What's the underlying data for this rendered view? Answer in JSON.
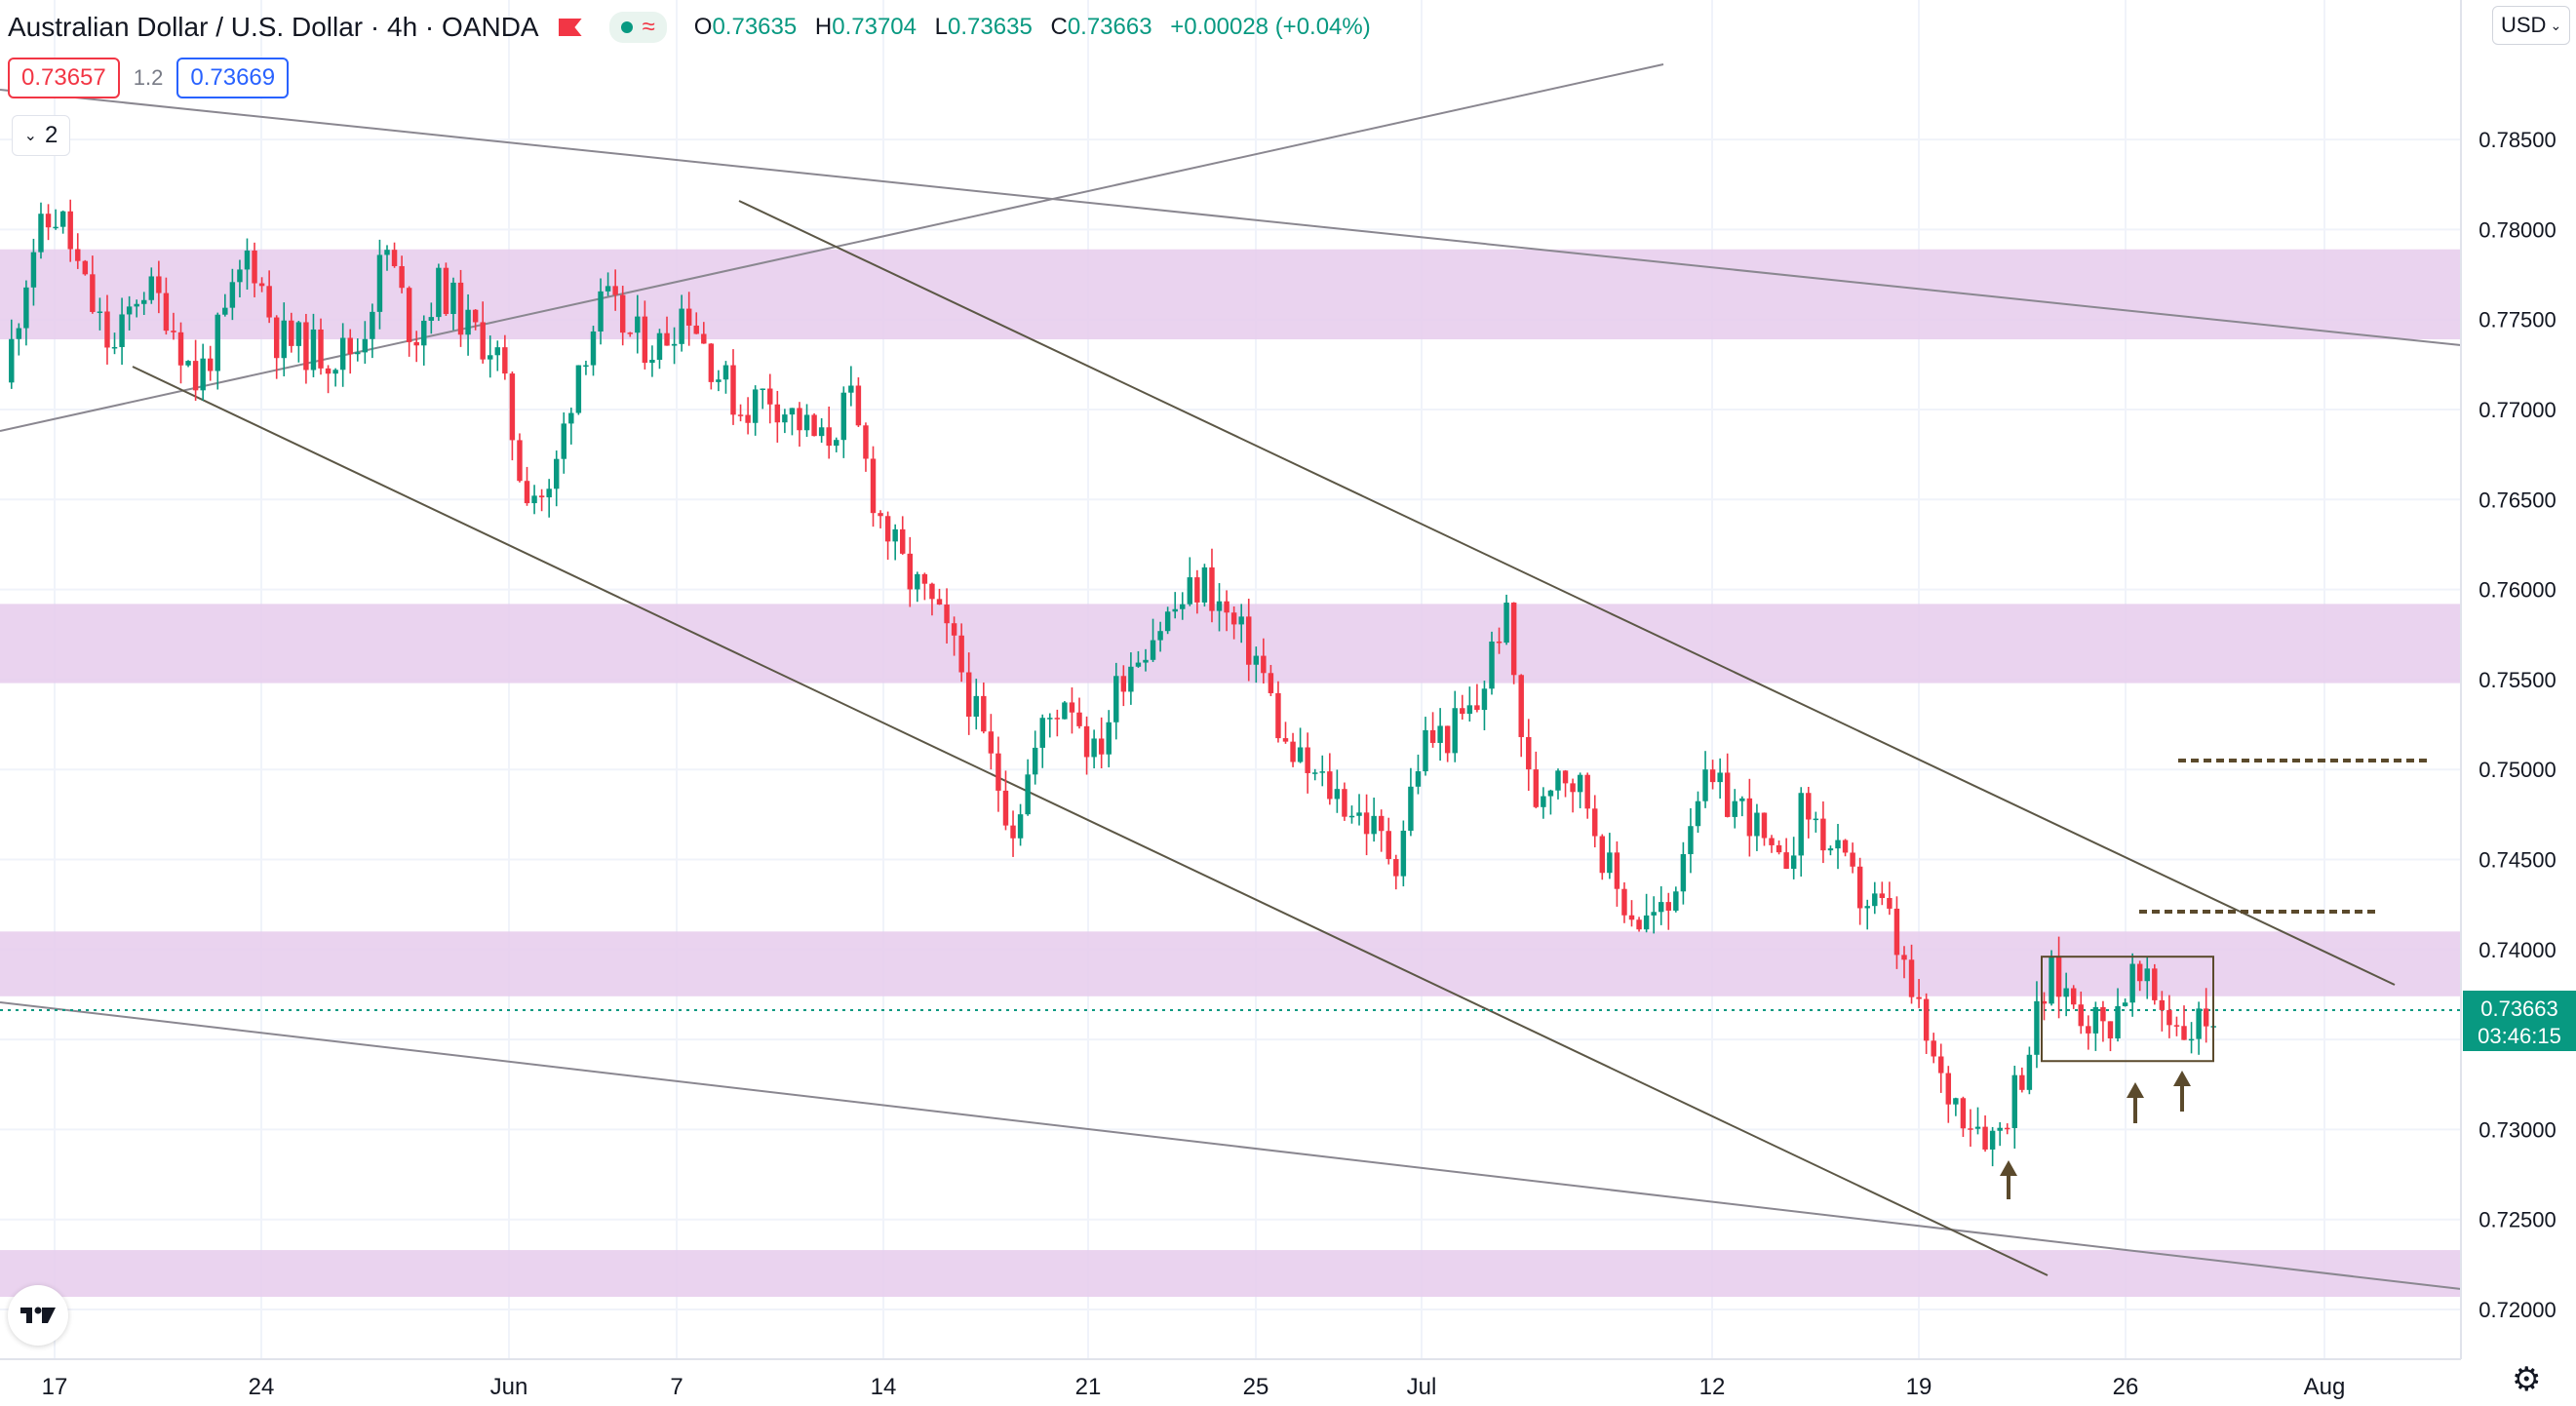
{
  "header": {
    "title": "Australian Dollar / U.S. Dollar · 4h · OANDA",
    "open_label": "O",
    "open": "0.73635",
    "high_label": "H",
    "high": "0.73704",
    "low_label": "L",
    "low": "0.73635",
    "close_label": "C",
    "close": "0.73663",
    "change": "+0.00028 (+0.04%)"
  },
  "trade": {
    "bid": "0.73657",
    "spread": "1.2",
    "ask": "0.73669"
  },
  "indicators_count": "2",
  "currency": "USD",
  "icons": [
    "flag-icon",
    "eye-icon",
    "wave-icon",
    "chevron-down-icon",
    "tradingview-logo-icon",
    "gear-icon"
  ],
  "colors": {
    "up": "#089981",
    "down": "#f23645",
    "zone": "#e6cbec",
    "trendline": "#5c5746",
    "channel": "#8a8790",
    "arrow": "#5b4a2c"
  },
  "price_label": {
    "value": "0.73663",
    "countdown": "03:46:15"
  },
  "chart_data": {
    "type": "candlestick",
    "y_axis": {
      "min": 0.718,
      "max": 0.7875,
      "ticks": [
        "0.78500",
        "0.78000",
        "0.77500",
        "0.77000",
        "0.76500",
        "0.76000",
        "0.75500",
        "0.75000",
        "0.74500",
        "0.74000",
        "0.73500",
        "0.73000",
        "0.72500",
        "0.72000"
      ]
    },
    "x_axis": {
      "ticks": [
        "17",
        "24",
        "Jun",
        "7",
        "14",
        "21",
        "25",
        "Jul",
        "12",
        "19",
        "26",
        "Aug"
      ]
    },
    "grid": true,
    "current_price": 0.73663,
    "zones": [
      {
        "top": 0.7789,
        "bottom": 0.7739
      },
      {
        "top": 0.7592,
        "bottom": 0.7548
      },
      {
        "top": 0.741,
        "bottom": 0.7374
      },
      {
        "top": 0.7233,
        "bottom": 0.7207
      }
    ],
    "dashed_levels": [
      0.7505,
      0.7421
    ],
    "consolidation_box": {
      "top": 0.7396,
      "bottom": 0.7338
    },
    "price_path": [
      0.7715,
      0.779,
      0.781,
      0.7765,
      0.773,
      0.777,
      0.7755,
      0.7715,
      0.7745,
      0.779,
      0.774,
      0.7735,
      0.773,
      0.7735,
      0.779,
      0.774,
      0.777,
      0.7745,
      0.7735,
      0.766,
      0.765,
      0.7725,
      0.776,
      0.774,
      0.7735,
      0.776,
      0.7725,
      0.77,
      0.771,
      0.7695,
      0.768,
      0.7705,
      0.7645,
      0.761,
      0.759,
      0.756,
      0.751,
      0.747,
      0.752,
      0.7545,
      0.7505,
      0.7555,
      0.7575,
      0.759,
      0.7605,
      0.758,
      0.756,
      0.751,
      0.7495,
      0.7485,
      0.747,
      0.745,
      0.7515,
      0.752,
      0.7535,
      0.759,
      0.748,
      0.7505,
      0.7485,
      0.7435,
      0.7415,
      0.742,
      0.749,
      0.7485,
      0.7475,
      0.744,
      0.748,
      0.7455,
      0.743,
      0.742,
      0.737,
      0.7325,
      0.731,
      0.7295,
      0.7335,
      0.7385,
      0.737,
      0.7355,
      0.7385,
      0.737,
      0.7355,
      0.7365
    ],
    "annotation_arrows": [
      "up",
      "up",
      "up"
    ]
  }
}
